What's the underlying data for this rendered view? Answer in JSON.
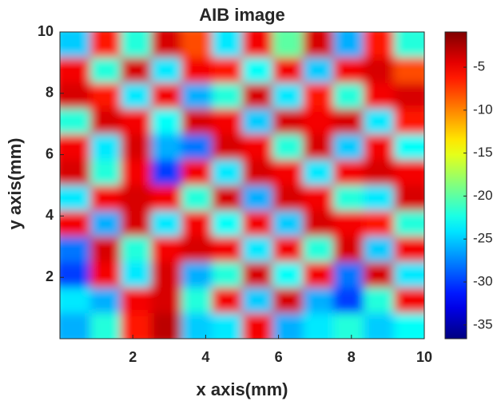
{
  "chart_data": {
    "type": "heatmap",
    "title": "AIB image",
    "xlabel": "x axis(mm)",
    "ylabel": "y axis(mm)",
    "xlim": [
      0,
      10
    ],
    "ylim": [
      0,
      10
    ],
    "xticks": [
      2,
      4,
      6,
      8,
      10
    ],
    "yticks": [
      2,
      4,
      6,
      8,
      10
    ],
    "colormap": "jet",
    "clim": [
      -36.6,
      -0.9
    ],
    "cticks": [
      -35,
      -30,
      -25,
      -20,
      -15,
      -10,
      -5
    ],
    "z": [
      [
        -25,
        -6,
        -22,
        -4,
        -8,
        -24,
        -5,
        -20,
        -4,
        -26,
        -6,
        -22
      ],
      [
        -5,
        -22,
        -4,
        -24,
        -5,
        -6,
        -23,
        -5,
        -25,
        -5,
        -4,
        -8
      ],
      [
        -4,
        -6,
        -24,
        -5,
        -26,
        -22,
        -4,
        -24,
        -6,
        -22,
        -5,
        -4
      ],
      [
        -22,
        -4,
        -5,
        -23,
        -4,
        -5,
        -25,
        -4,
        -5,
        -4,
        -24,
        -6
      ],
      [
        -5,
        -24,
        -4,
        -26,
        -28,
        -4,
        -5,
        -22,
        -4,
        -25,
        -5,
        -23
      ],
      [
        -4,
        -22,
        -5,
        -30,
        -5,
        -24,
        -4,
        -5,
        -24,
        -5,
        -4,
        -5
      ],
      [
        -24,
        -5,
        -4,
        -5,
        -22,
        -4,
        -26,
        -4,
        -5,
        -22,
        -24,
        -4
      ],
      [
        -5,
        -26,
        -4,
        -24,
        -5,
        -23,
        -5,
        -25,
        -4,
        -5,
        -6,
        -22
      ],
      [
        -28,
        -4,
        -22,
        -5,
        -4,
        -5,
        -24,
        -5,
        -22,
        -4,
        -25,
        -5
      ],
      [
        -30,
        -5,
        -24,
        -4,
        -26,
        -22,
        -4,
        -23,
        -5,
        -28,
        -4,
        -24
      ],
      [
        -24,
        -26,
        -5,
        -4,
        -22,
        -5,
        -25,
        -4,
        -26,
        -30,
        -22,
        -5
      ],
      [
        -26,
        -22,
        -6,
        -3,
        -25,
        -24,
        -5,
        -26,
        -24,
        -22,
        -25,
        -23
      ]
    ]
  }
}
